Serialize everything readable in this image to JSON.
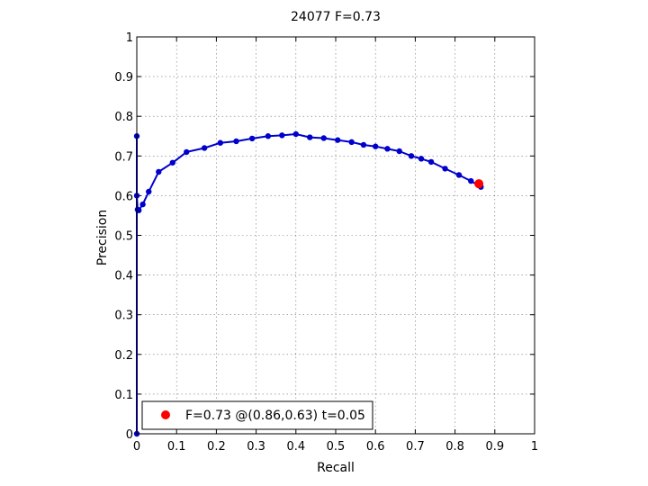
{
  "chart_data": {
    "type": "line",
    "title": "24077 F=0.73",
    "xlabel": "Recall",
    "ylabel": "Precision",
    "xlim": [
      0,
      1
    ],
    "ylim": [
      0,
      1
    ],
    "xticks": [
      "0",
      "0.1",
      "0.2",
      "0.3",
      "0.4",
      "0.5",
      "0.6",
      "0.7",
      "0.8",
      "0.9",
      "1"
    ],
    "yticks": [
      "0",
      "0.1",
      "0.2",
      "0.3",
      "0.4",
      "0.5",
      "0.6",
      "0.7",
      "0.8",
      "0.9",
      "1"
    ],
    "grid": true,
    "series": [
      {
        "color": "#0000cc",
        "marker": "dot",
        "x": [
          0.0,
          0.0,
          0.0,
          0.002,
          0.005,
          0.015,
          0.03,
          0.055,
          0.09,
          0.125,
          0.17,
          0.21,
          0.25,
          0.29,
          0.33,
          0.365,
          0.4,
          0.435,
          0.47,
          0.505,
          0.54,
          0.57,
          0.6,
          0.63,
          0.66,
          0.69,
          0.715,
          0.74,
          0.775,
          0.81,
          0.84,
          0.865
        ],
        "y": [
          0.0,
          0.75,
          0.6,
          0.565,
          0.563,
          0.578,
          0.61,
          0.66,
          0.683,
          0.71,
          0.72,
          0.733,
          0.737,
          0.744,
          0.75,
          0.752,
          0.755,
          0.747,
          0.745,
          0.74,
          0.735,
          0.728,
          0.724,
          0.718,
          0.712,
          0.7,
          0.693,
          0.685,
          0.668,
          0.652,
          0.637,
          0.622
        ]
      }
    ],
    "best_point": {
      "x": 0.86,
      "y": 0.63,
      "color": "#ff0000"
    },
    "legend": {
      "location": "bottom-left",
      "entries": [
        "F=0.73 @(0.86,0.63) t=0.05"
      ]
    }
  }
}
